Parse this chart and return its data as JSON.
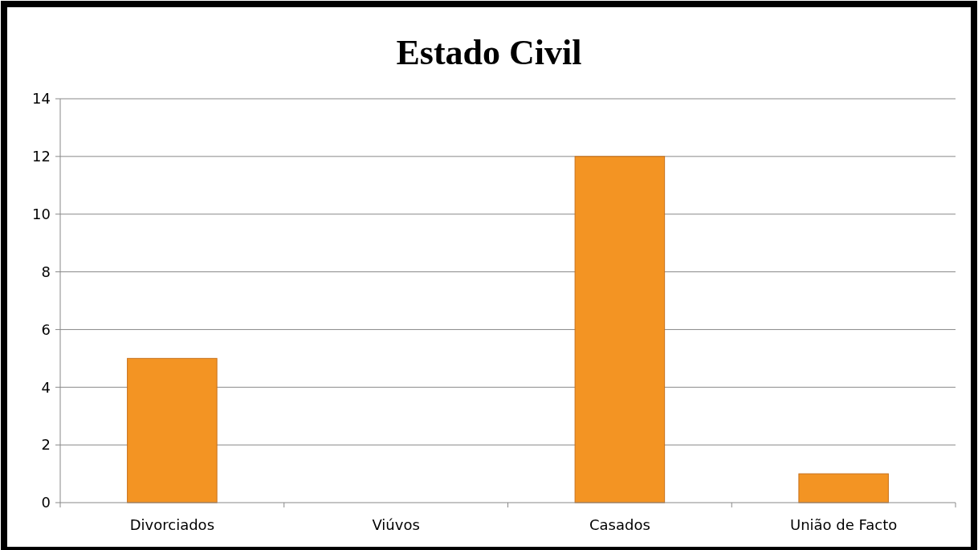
{
  "chart_data": {
    "type": "bar",
    "title": "Estado Civil",
    "categories": [
      "Divorciados",
      "Viúvos",
      "Casados",
      "União de Facto"
    ],
    "values": [
      5,
      0,
      12,
      1
    ],
    "color": "#f39423",
    "ylim": [
      0,
      14
    ],
    "yticks": [
      0,
      2,
      4,
      6,
      8,
      10,
      12,
      14
    ],
    "grid": "y"
  }
}
